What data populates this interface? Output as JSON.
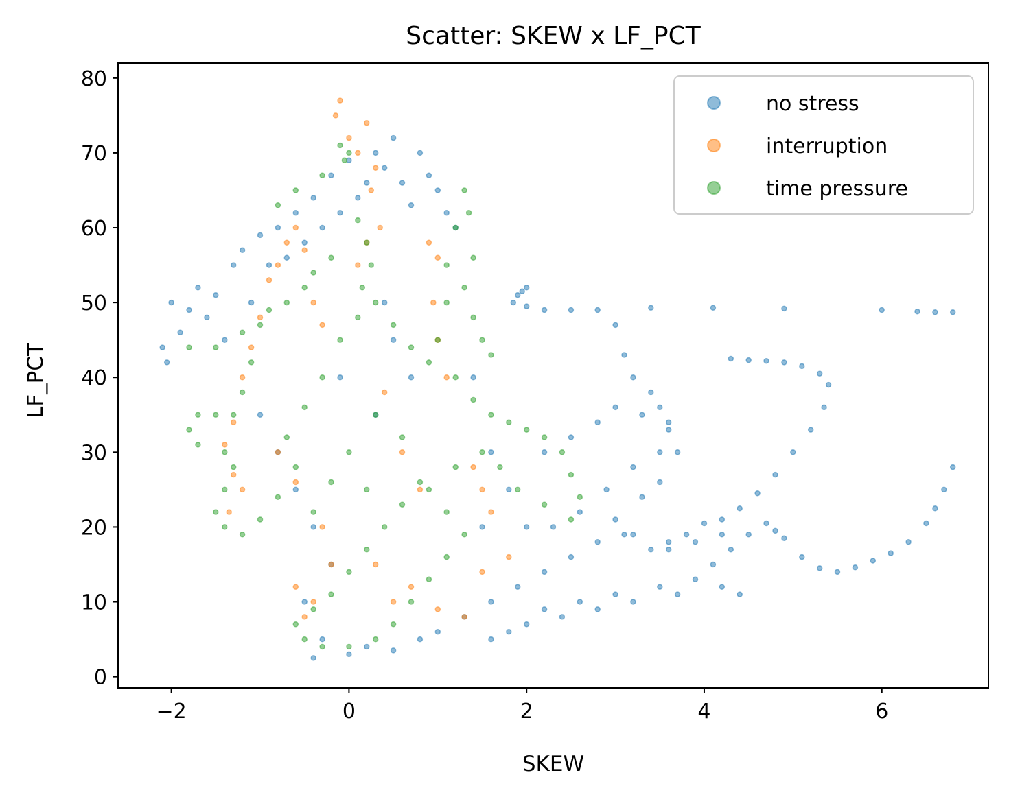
{
  "chart_data": {
    "type": "scatter",
    "title": "Scatter: SKEW x LF_PCT",
    "xlabel": "SKEW",
    "ylabel": "LF_PCT",
    "xlim": [
      -2.6,
      7.2
    ],
    "ylim": [
      -1.5,
      82
    ],
    "xticks": [
      -2,
      0,
      2,
      4,
      6
    ],
    "yticks": [
      0,
      10,
      20,
      30,
      40,
      50,
      60,
      70,
      80
    ],
    "xtick_labels": [
      "−2",
      "0",
      "2",
      "4",
      "6"
    ],
    "ytick_labels": [
      "0",
      "10",
      "20",
      "30",
      "40",
      "50",
      "60",
      "70",
      "80"
    ],
    "grid": false,
    "legend_position": "top-right",
    "series": [
      {
        "name": "no stress",
        "color": "#1f77b4",
        "points": [
          [
            -2.1,
            44
          ],
          [
            -2.0,
            50
          ],
          [
            -2.05,
            42
          ],
          [
            -1.9,
            46
          ],
          [
            -1.8,
            49
          ],
          [
            -1.7,
            52
          ],
          [
            -1.6,
            48
          ],
          [
            -1.5,
            51
          ],
          [
            -1.4,
            45
          ],
          [
            -1.3,
            55
          ],
          [
            -1.2,
            57
          ],
          [
            -1.1,
            50
          ],
          [
            -1.0,
            59
          ],
          [
            -0.9,
            55
          ],
          [
            -0.8,
            60
          ],
          [
            -0.7,
            56
          ],
          [
            -0.6,
            62
          ],
          [
            -0.5,
            58
          ],
          [
            -0.4,
            64
          ],
          [
            -0.3,
            60
          ],
          [
            -0.2,
            67
          ],
          [
            -0.1,
            62
          ],
          [
            0.0,
            69
          ],
          [
            0.1,
            64
          ],
          [
            0.2,
            66
          ],
          [
            0.3,
            70
          ],
          [
            0.4,
            68
          ],
          [
            0.5,
            72
          ],
          [
            0.6,
            66
          ],
          [
            0.7,
            63
          ],
          [
            0.8,
            70
          ],
          [
            0.9,
            67
          ],
          [
            1.0,
            65
          ],
          [
            1.1,
            62
          ],
          [
            1.2,
            60
          ],
          [
            -1.0,
            35
          ],
          [
            -0.8,
            30
          ],
          [
            -0.6,
            25
          ],
          [
            -0.4,
            20
          ],
          [
            -0.2,
            15
          ],
          [
            -0.5,
            10
          ],
          [
            -0.3,
            5
          ],
          [
            -0.4,
            2.5
          ],
          [
            0.0,
            3
          ],
          [
            0.2,
            4
          ],
          [
            0.5,
            3.5
          ],
          [
            0.8,
            5
          ],
          [
            1.0,
            6
          ],
          [
            1.3,
            8
          ],
          [
            1.6,
            10
          ],
          [
            1.9,
            12
          ],
          [
            2.2,
            14
          ],
          [
            2.5,
            16
          ],
          [
            2.8,
            18
          ],
          [
            3.1,
            19
          ],
          [
            2.3,
            20
          ],
          [
            2.6,
            22
          ],
          [
            2.9,
            25
          ],
          [
            3.2,
            28
          ],
          [
            3.5,
            30
          ],
          [
            2.5,
            32
          ],
          [
            2.8,
            34
          ],
          [
            3.0,
            36
          ],
          [
            3.3,
            35
          ],
          [
            3.6,
            33
          ],
          [
            3.7,
            30
          ],
          [
            3.5,
            26
          ],
          [
            3.3,
            24
          ],
          [
            3.0,
            21
          ],
          [
            3.2,
            19
          ],
          [
            3.6,
            17
          ],
          [
            3.9,
            18
          ],
          [
            4.2,
            19
          ],
          [
            4.5,
            19
          ],
          [
            4.3,
            17
          ],
          [
            4.1,
            15
          ],
          [
            4.4,
            11
          ],
          [
            4.2,
            12
          ],
          [
            3.9,
            13
          ],
          [
            3.7,
            11
          ],
          [
            3.5,
            12
          ],
          [
            3.2,
            10
          ],
          [
            3.0,
            11
          ],
          [
            2.8,
            9
          ],
          [
            2.6,
            10
          ],
          [
            2.4,
            8
          ],
          [
            2.2,
            9
          ],
          [
            2.0,
            7
          ],
          [
            1.8,
            6
          ],
          [
            1.6,
            5
          ],
          [
            1.9,
            51
          ],
          [
            2.0,
            52
          ],
          [
            1.85,
            50
          ],
          [
            2.0,
            49.5
          ],
          [
            1.95,
            51.5
          ],
          [
            2.2,
            49
          ],
          [
            2.5,
            49
          ],
          [
            2.8,
            49
          ],
          [
            3.0,
            47
          ],
          [
            3.1,
            43
          ],
          [
            3.2,
            40
          ],
          [
            3.4,
            38
          ],
          [
            3.5,
            36
          ],
          [
            3.6,
            34
          ],
          [
            3.4,
            49.3
          ],
          [
            4.1,
            49.3
          ],
          [
            4.9,
            49.2
          ],
          [
            6.0,
            49
          ],
          [
            6.4,
            48.8
          ],
          [
            6.6,
            48.7
          ],
          [
            6.8,
            48.7
          ],
          [
            4.3,
            42.5
          ],
          [
            4.5,
            42.3
          ],
          [
            4.7,
            42.2
          ],
          [
            4.9,
            42
          ],
          [
            5.1,
            41.5
          ],
          [
            5.3,
            40.5
          ],
          [
            5.4,
            39
          ],
          [
            5.35,
            36
          ],
          [
            5.2,
            33
          ],
          [
            5.0,
            30
          ],
          [
            4.8,
            27
          ],
          [
            4.6,
            24.5
          ],
          [
            4.4,
            22.5
          ],
          [
            4.2,
            21
          ],
          [
            4.0,
            20.5
          ],
          [
            3.8,
            19
          ],
          [
            3.6,
            18
          ],
          [
            3.4,
            17
          ],
          [
            4.7,
            20.5
          ],
          [
            4.8,
            19.5
          ],
          [
            4.9,
            18.5
          ],
          [
            5.1,
            16
          ],
          [
            5.3,
            14.5
          ],
          [
            5.5,
            14
          ],
          [
            5.7,
            14.6
          ],
          [
            5.9,
            15.5
          ],
          [
            6.1,
            16.5
          ],
          [
            6.3,
            18
          ],
          [
            6.5,
            20.5
          ],
          [
            6.6,
            22.5
          ],
          [
            6.7,
            25
          ],
          [
            6.8,
            28
          ],
          [
            0.5,
            45
          ],
          [
            0.7,
            40
          ],
          [
            0.3,
            35
          ],
          [
            -0.1,
            40
          ],
          [
            0.4,
            50
          ],
          [
            1.4,
            40
          ],
          [
            1.6,
            30
          ],
          [
            1.8,
            25
          ],
          [
            2.0,
            20
          ],
          [
            2.2,
            30
          ],
          [
            1.5,
            20
          ]
        ]
      },
      {
        "name": "interruption",
        "color": "#ff7f0e",
        "points": [
          [
            -0.1,
            77
          ],
          [
            -0.15,
            75
          ],
          [
            0.0,
            72
          ],
          [
            0.1,
            70
          ],
          [
            0.2,
            74
          ],
          [
            0.3,
            68
          ],
          [
            0.25,
            65
          ],
          [
            0.35,
            60
          ],
          [
            0.2,
            58
          ],
          [
            0.1,
            55
          ],
          [
            -0.6,
            60
          ],
          [
            -0.7,
            58
          ],
          [
            -0.8,
            55
          ],
          [
            -0.9,
            53
          ],
          [
            -0.5,
            57
          ],
          [
            -0.4,
            50
          ],
          [
            -0.3,
            47
          ],
          [
            -1.0,
            48
          ],
          [
            -1.1,
            44
          ],
          [
            -1.2,
            40
          ],
          [
            -1.3,
            34
          ],
          [
            -1.4,
            31
          ],
          [
            -1.3,
            27
          ],
          [
            -1.35,
            22
          ],
          [
            -1.2,
            25
          ],
          [
            0.9,
            58
          ],
          [
            1.0,
            56
          ],
          [
            0.95,
            50
          ],
          [
            1.0,
            45
          ],
          [
            1.1,
            40
          ],
          [
            -0.3,
            20
          ],
          [
            -0.2,
            15
          ],
          [
            -0.4,
            10
          ],
          [
            -0.5,
            8
          ],
          [
            -0.6,
            12
          ],
          [
            0.3,
            15
          ],
          [
            0.5,
            10
          ],
          [
            0.7,
            12
          ],
          [
            1.0,
            9
          ],
          [
            1.3,
            8
          ],
          [
            1.5,
            14
          ],
          [
            1.8,
            16
          ],
          [
            1.4,
            28
          ],
          [
            1.5,
            25
          ],
          [
            1.6,
            22
          ],
          [
            0.6,
            30
          ],
          [
            0.8,
            25
          ],
          [
            0.4,
            38
          ],
          [
            -0.8,
            30
          ],
          [
            -0.6,
            26
          ]
        ]
      },
      {
        "name": "time pressure",
        "color": "#2ca02c",
        "points": [
          [
            -0.1,
            71
          ],
          [
            0.0,
            70
          ],
          [
            -0.05,
            69
          ],
          [
            -0.3,
            67
          ],
          [
            -0.6,
            65
          ],
          [
            -0.8,
            63
          ],
          [
            0.1,
            61
          ],
          [
            0.2,
            58
          ],
          [
            0.25,
            55
          ],
          [
            0.15,
            52
          ],
          [
            -0.2,
            56
          ],
          [
            -0.4,
            54
          ],
          [
            -0.5,
            52
          ],
          [
            -0.7,
            50
          ],
          [
            -0.9,
            49
          ],
          [
            -1.0,
            47
          ],
          [
            -1.2,
            46
          ],
          [
            -1.5,
            44
          ],
          [
            -1.8,
            44
          ],
          [
            -1.1,
            42
          ],
          [
            -1.2,
            38
          ],
          [
            -1.3,
            35
          ],
          [
            -1.5,
            35
          ],
          [
            -1.7,
            35
          ],
          [
            -1.8,
            33
          ],
          [
            -1.7,
            31
          ],
          [
            -1.4,
            30
          ],
          [
            -1.3,
            28
          ],
          [
            -1.4,
            25
          ],
          [
            -1.5,
            22
          ],
          [
            -1.4,
            20
          ],
          [
            -1.2,
            19
          ],
          [
            -1.0,
            21
          ],
          [
            -0.8,
            24
          ],
          [
            -0.6,
            28
          ],
          [
            -0.7,
            32
          ],
          [
            -0.5,
            36
          ],
          [
            -0.3,
            40
          ],
          [
            -0.1,
            45
          ],
          [
            0.1,
            48
          ],
          [
            0.3,
            50
          ],
          [
            0.5,
            47
          ],
          [
            0.7,
            44
          ],
          [
            0.9,
            42
          ],
          [
            1.0,
            45
          ],
          [
            1.1,
            50
          ],
          [
            1.1,
            55
          ],
          [
            1.2,
            60
          ],
          [
            1.3,
            65
          ],
          [
            1.35,
            62
          ],
          [
            1.4,
            56
          ],
          [
            1.3,
            52
          ],
          [
            1.4,
            48
          ],
          [
            1.5,
            45
          ],
          [
            1.6,
            43
          ],
          [
            1.2,
            40
          ],
          [
            1.4,
            37
          ],
          [
            1.6,
            35
          ],
          [
            1.8,
            34
          ],
          [
            2.0,
            33
          ],
          [
            2.2,
            32
          ],
          [
            2.4,
            30
          ],
          [
            2.5,
            27
          ],
          [
            2.6,
            24
          ],
          [
            2.5,
            21
          ],
          [
            2.2,
            23
          ],
          [
            1.9,
            25
          ],
          [
            1.7,
            28
          ],
          [
            1.5,
            30
          ],
          [
            1.2,
            28
          ],
          [
            0.8,
            26
          ],
          [
            0.6,
            23
          ],
          [
            0.4,
            20
          ],
          [
            0.2,
            17
          ],
          [
            0.0,
            14
          ],
          [
            -0.2,
            11
          ],
          [
            -0.4,
            9
          ],
          [
            -0.6,
            7
          ],
          [
            -0.5,
            5
          ],
          [
            -0.3,
            4
          ],
          [
            0.0,
            4
          ],
          [
            0.3,
            5
          ],
          [
            0.5,
            7
          ],
          [
            0.7,
            10
          ],
          [
            0.9,
            13
          ],
          [
            1.1,
            16
          ],
          [
            1.3,
            19
          ],
          [
            1.1,
            22
          ],
          [
            0.9,
            25
          ],
          [
            0.6,
            32
          ],
          [
            0.3,
            35
          ],
          [
            0.0,
            30
          ],
          [
            -0.2,
            26
          ],
          [
            -0.4,
            22
          ],
          [
            0.2,
            25
          ]
        ]
      }
    ]
  }
}
